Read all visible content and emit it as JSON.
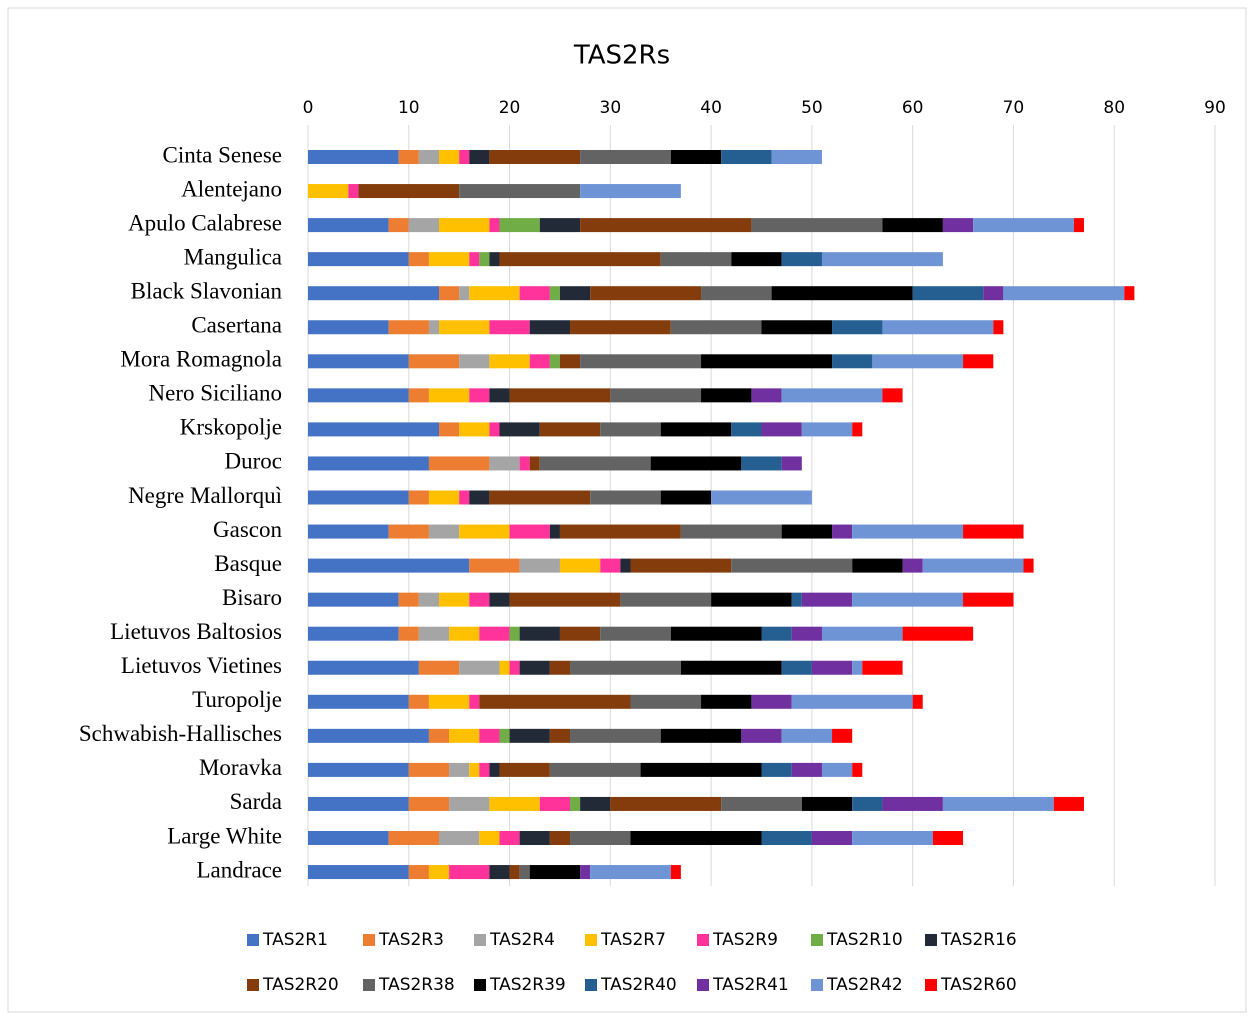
{
  "chart_data": {
    "type": "stacked_barh",
    "title": "TAS2Rs",
    "categories": [
      "Cinta Senese",
      "Alentejano",
      "Apulo Calabrese",
      "Mangulica",
      "Black Slavonian",
      "Casertana",
      "Mora Romagnola",
      "Nero Siciliano",
      "Krskopolje",
      "Duroc",
      "Negre Mallorquì",
      "Gascon",
      "Basque",
      "Bisaro",
      "Lietuvos Baltosios",
      "Lietuvos Vietines",
      "Turopolje",
      "Schwabish-Hallisches",
      "Moravka",
      "Sarda",
      "Large White",
      "Landrace"
    ],
    "xlim": [
      0,
      90
    ],
    "xticks": [
      0,
      10,
      20,
      30,
      40,
      50,
      60,
      70,
      80,
      90
    ],
    "grid": true,
    "legend": "bottom",
    "series": [
      {
        "name": "TAS2R1",
        "color": "#4472c4",
        "values": [
          9,
          0,
          8,
          10,
          13,
          8,
          10,
          10,
          13,
          12,
          10,
          8,
          16,
          9,
          9,
          11,
          10,
          12,
          10,
          10,
          8,
          10
        ]
      },
      {
        "name": "TAS2R3",
        "color": "#ed7d31",
        "values": [
          2,
          0,
          2,
          2,
          2,
          4,
          5,
          2,
          2,
          6,
          2,
          4,
          5,
          2,
          2,
          4,
          2,
          2,
          4,
          4,
          5,
          2
        ]
      },
      {
        "name": "TAS2R4",
        "color": "#a5a5a5",
        "values": [
          2,
          0,
          3,
          0,
          1,
          1,
          3,
          0,
          0,
          3,
          0,
          3,
          4,
          2,
          3,
          4,
          0,
          0,
          2,
          4,
          4,
          0
        ]
      },
      {
        "name": "TAS2R7",
        "color": "#ffc000",
        "values": [
          2,
          4,
          5,
          4,
          5,
          5,
          4,
          4,
          3,
          0,
          3,
          5,
          4,
          3,
          3,
          1,
          4,
          3,
          1,
          5,
          2,
          2
        ]
      },
      {
        "name": "TAS2R9",
        "color": "#ff3399",
        "values": [
          1,
          1,
          1,
          1,
          3,
          4,
          2,
          2,
          1,
          1,
          1,
          4,
          2,
          2,
          3,
          1,
          1,
          2,
          1,
          3,
          2,
          4
        ]
      },
      {
        "name": "TAS2R10",
        "color": "#70ad47",
        "values": [
          0,
          0,
          4,
          1,
          1,
          0,
          1,
          0,
          0,
          0,
          0,
          0,
          0,
          0,
          1,
          0,
          0,
          1,
          0,
          1,
          0,
          0
        ]
      },
      {
        "name": "TAS2R16",
        "color": "#222a38",
        "values": [
          2,
          0,
          4,
          1,
          3,
          4,
          0,
          2,
          4,
          0,
          2,
          1,
          1,
          2,
          4,
          3,
          0,
          4,
          1,
          3,
          3,
          2
        ]
      },
      {
        "name": "TAS2R20",
        "color": "#843c0c",
        "values": [
          9,
          10,
          17,
          16,
          11,
          10,
          2,
          10,
          6,
          1,
          10,
          12,
          10,
          11,
          4,
          2,
          15,
          2,
          5,
          11,
          2,
          1
        ]
      },
      {
        "name": "TAS2R38",
        "color": "#636363",
        "values": [
          9,
          12,
          13,
          7,
          7,
          9,
          12,
          9,
          6,
          11,
          7,
          10,
          12,
          9,
          7,
          11,
          7,
          9,
          9,
          8,
          6,
          1
        ]
      },
      {
        "name": "TAS2R39",
        "color": "#000000",
        "values": [
          5,
          0,
          6,
          5,
          14,
          7,
          13,
          5,
          7,
          9,
          5,
          5,
          5,
          8,
          9,
          10,
          5,
          8,
          12,
          5,
          13,
          5
        ]
      },
      {
        "name": "TAS2R40",
        "color": "#255e91",
        "values": [
          5,
          0,
          0,
          4,
          7,
          5,
          4,
          0,
          3,
          4,
          0,
          0,
          0,
          1,
          3,
          3,
          0,
          0,
          3,
          3,
          5,
          0
        ]
      },
      {
        "name": "TAS2R41",
        "color": "#7030a0",
        "values": [
          0,
          0,
          3,
          0,
          2,
          0,
          0,
          3,
          4,
          2,
          0,
          2,
          2,
          5,
          3,
          4,
          4,
          4,
          3,
          6,
          4,
          1
        ]
      },
      {
        "name": "TAS2R42",
        "color": "#6f94d6",
        "values": [
          5,
          10,
          10,
          12,
          12,
          11,
          9,
          10,
          5,
          0,
          10,
          11,
          10,
          11,
          8,
          1,
          12,
          5,
          3,
          11,
          8,
          8
        ]
      },
      {
        "name": "TAS2R60",
        "color": "#ff0000",
        "values": [
          0,
          0,
          1,
          0,
          1,
          1,
          3,
          2,
          1,
          0,
          0,
          6,
          1,
          5,
          7,
          4,
          1,
          2,
          1,
          3,
          3,
          1
        ]
      }
    ]
  }
}
